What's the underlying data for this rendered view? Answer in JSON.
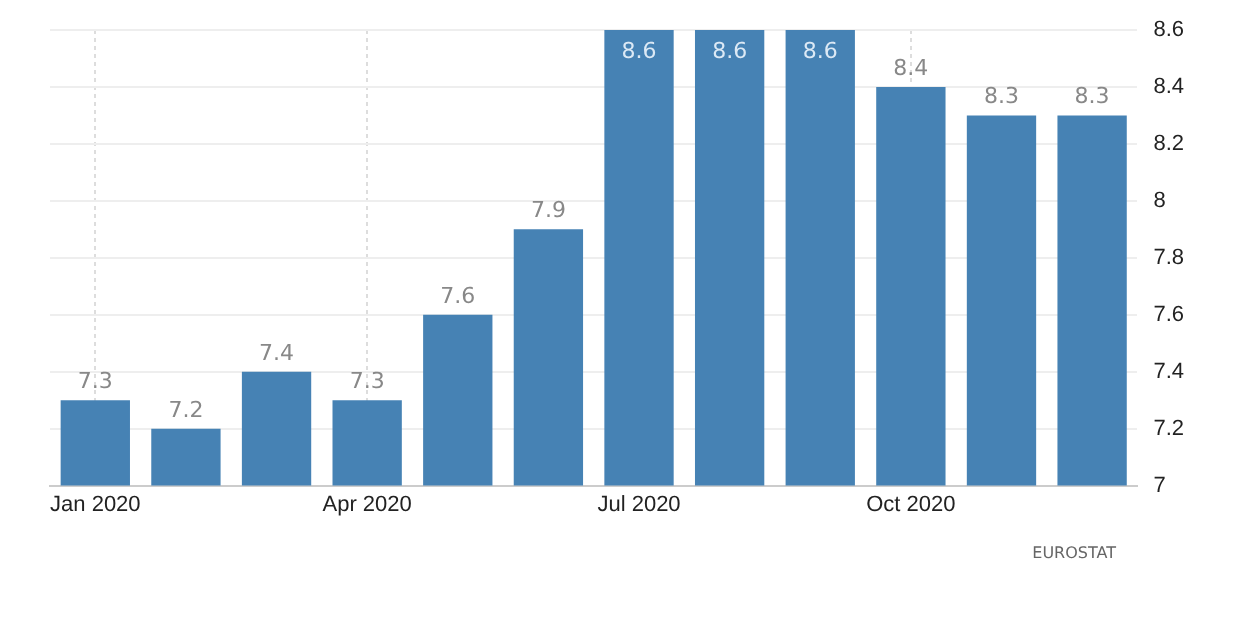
{
  "chart_data": {
    "type": "bar",
    "categories": [
      "Jan 2020",
      null,
      null,
      "Apr 2020",
      null,
      null,
      "Jul 2020",
      null,
      null,
      "Oct 2020",
      null,
      null
    ],
    "values": [
      7.3,
      7.2,
      7.4,
      7.3,
      7.6,
      7.9,
      8.6,
      8.6,
      8.6,
      8.4,
      8.3,
      8.3
    ],
    "color": "#4682b4",
    "ylim": [
      7,
      8.6
    ],
    "yticks": [
      7,
      7.2,
      7.4,
      7.6,
      7.8,
      8,
      8.2,
      8.4,
      8.6
    ],
    "grid": true,
    "data_labels": true,
    "annotations": [
      "EUROSTAT"
    ]
  }
}
